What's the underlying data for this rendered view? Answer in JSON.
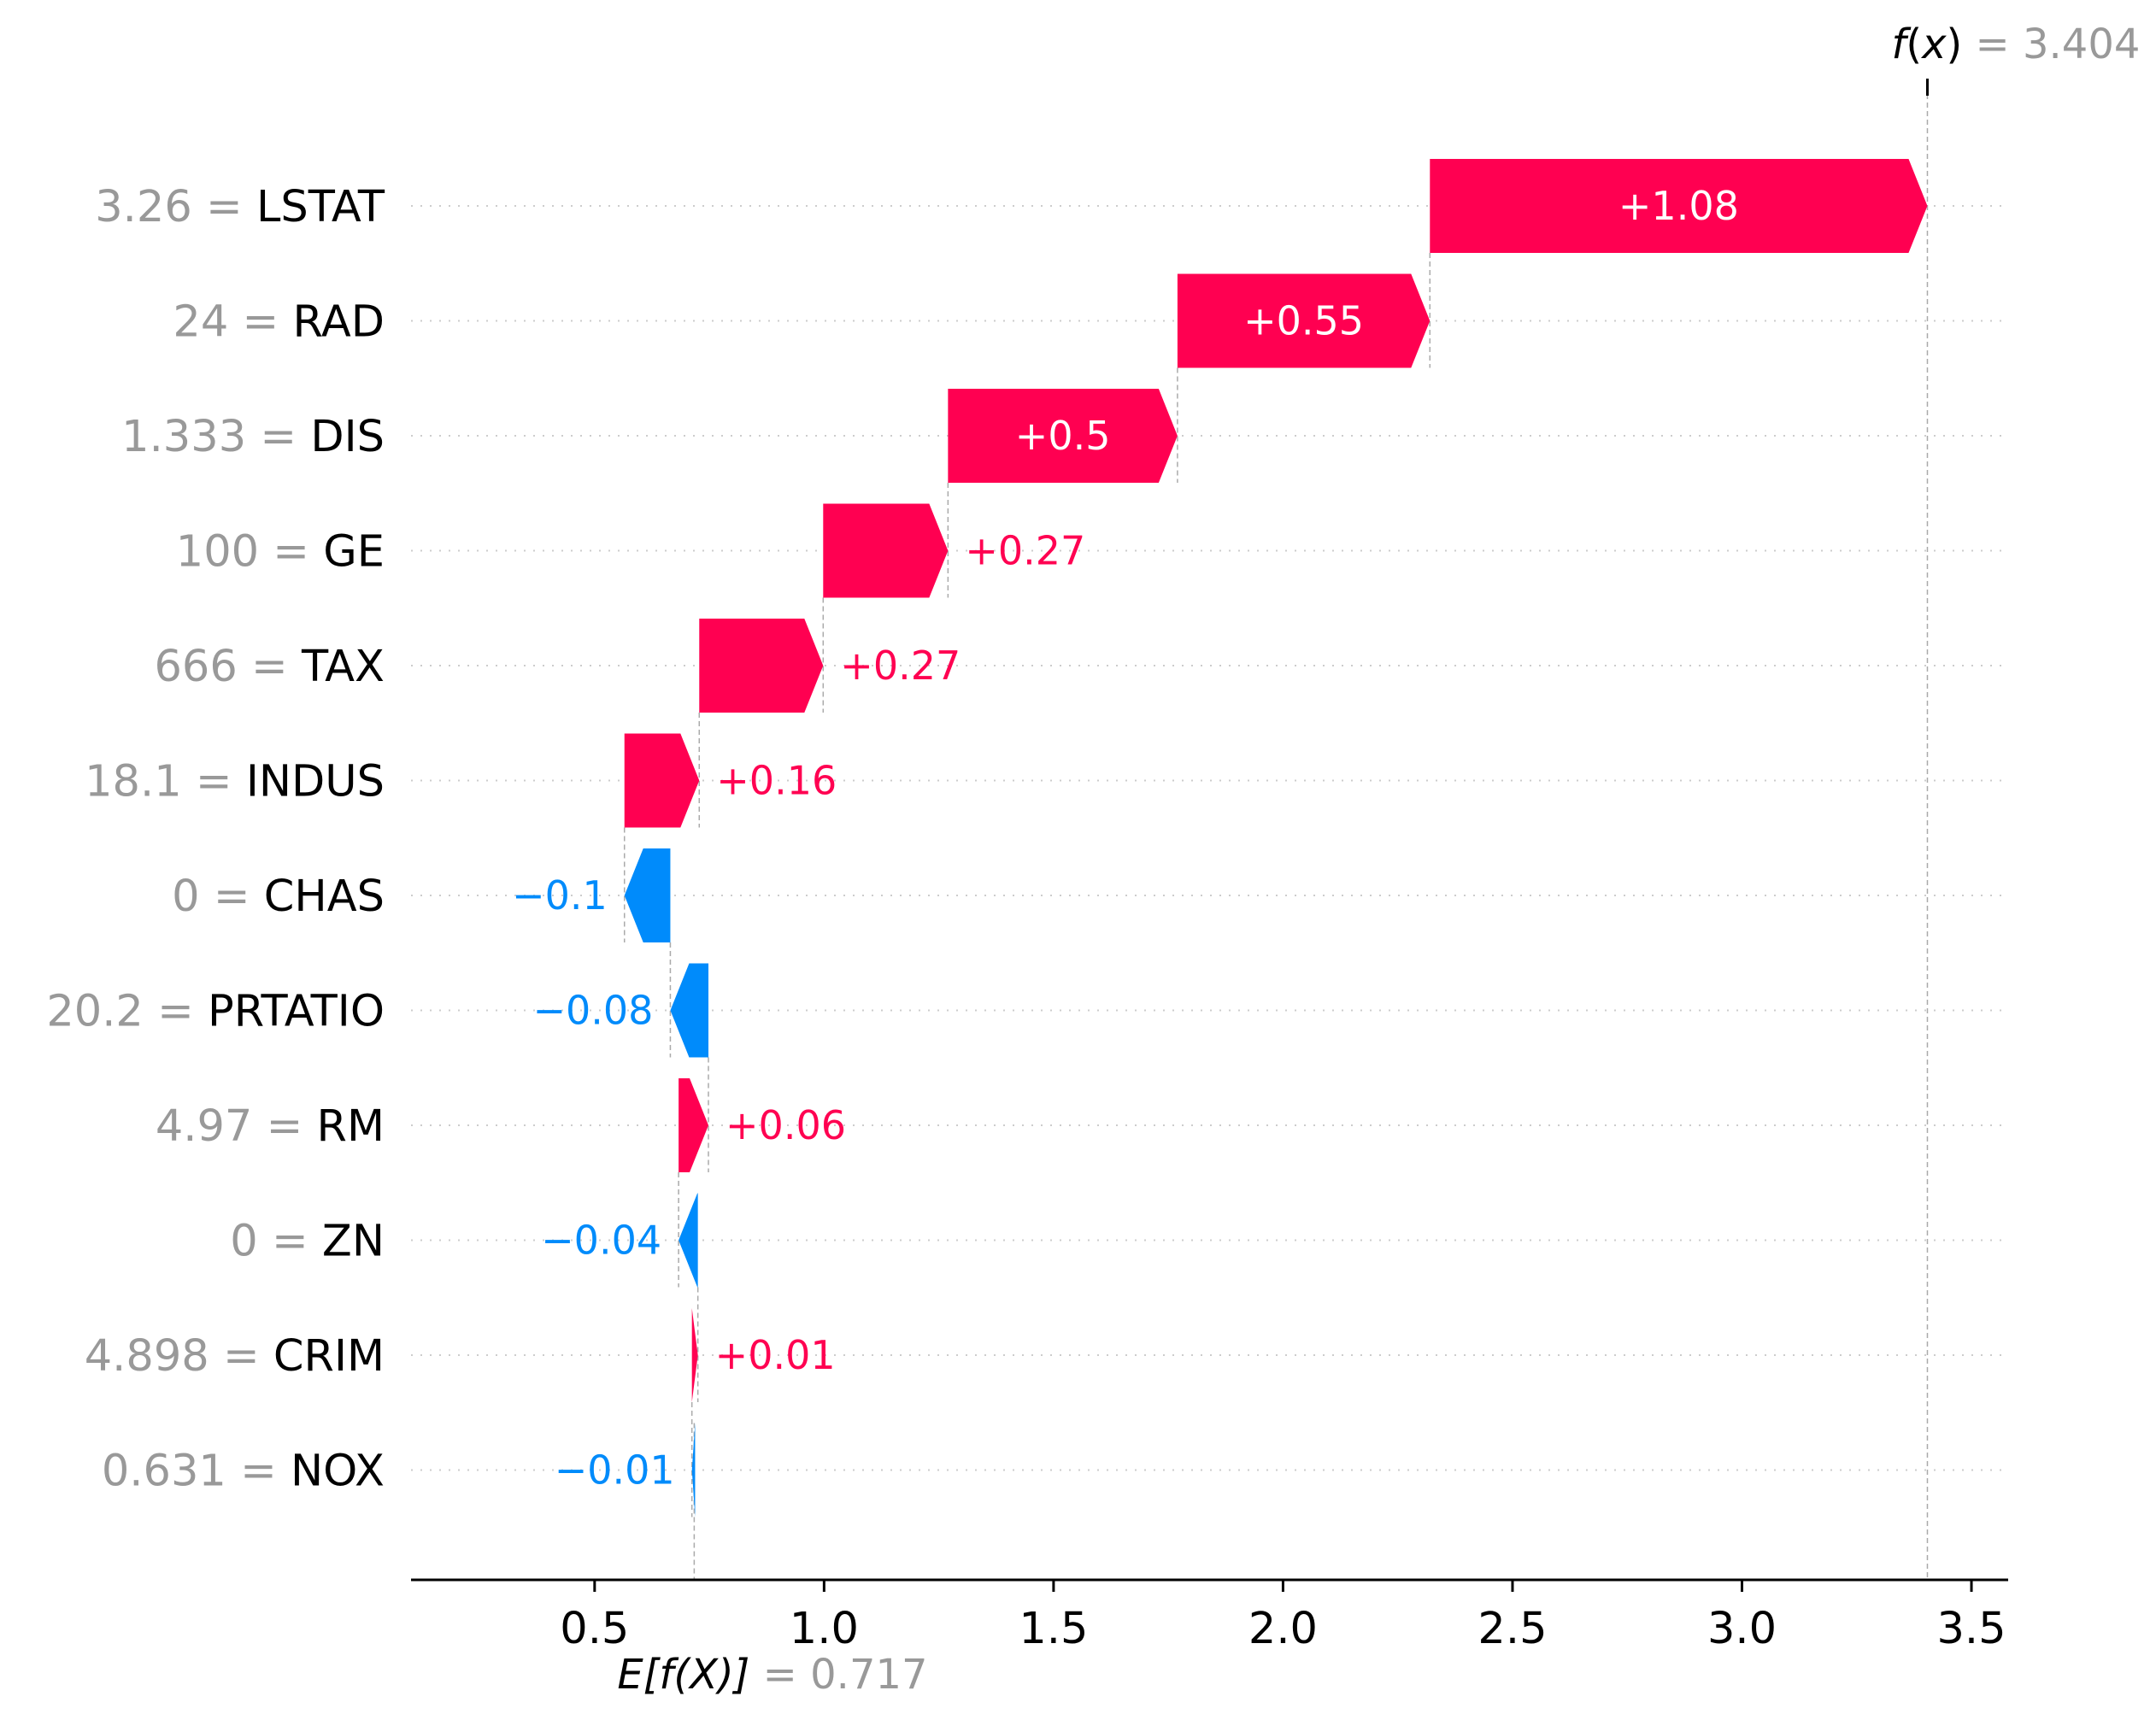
{
  "colors": {
    "positive": "#ff0051",
    "negative": "#008bfb",
    "muted": "#999999",
    "text": "#000000"
  },
  "chart_data": {
    "type": "waterfall",
    "xlim": [
      0.1,
      3.58
    ],
    "xticks": [
      0.5,
      1.0,
      1.5,
      2.0,
      2.5,
      3.0,
      3.5
    ],
    "xtick_labels": [
      "0.5",
      "1.0",
      "1.5",
      "2.0",
      "2.5",
      "3.0",
      "3.5"
    ],
    "base_value": 0.717,
    "base_label": {
      "prefix": "E[",
      "func": "f",
      "open": "(",
      "var": "X",
      "close": ")]",
      "value_text": " = 0.717"
    },
    "output_value": 3.404,
    "output_label": {
      "func": "f",
      "open": "(",
      "var": "x",
      "close": ")",
      "value_text": " = 3.404"
    },
    "features": [
      {
        "value": "3.26",
        "name": "LSTAT",
        "start": 2.32,
        "end": 3.404,
        "label": "+1.08"
      },
      {
        "value": "24",
        "name": "RAD",
        "start": 1.77,
        "end": 2.32,
        "label": "+0.55"
      },
      {
        "value": "1.333",
        "name": "DIS",
        "start": 1.27,
        "end": 1.77,
        "label": "+0.5"
      },
      {
        "value": "100",
        "name": "GE",
        "start": 0.998,
        "end": 1.27,
        "label": "+0.27"
      },
      {
        "value": "666",
        "name": "TAX",
        "start": 0.728,
        "end": 0.998,
        "label": "+0.27"
      },
      {
        "value": "18.1",
        "name": "INDUS",
        "start": 0.565,
        "end": 0.728,
        "label": "+0.16"
      },
      {
        "value": "0",
        "name": "CHAS",
        "start": 0.665,
        "end": 0.565,
        "label": "−0.1"
      },
      {
        "value": "20.2",
        "name": "PRTATIO",
        "start": 0.748,
        "end": 0.665,
        "label": "−0.08"
      },
      {
        "value": "4.97",
        "name": "RM",
        "start": 0.683,
        "end": 0.748,
        "label": "+0.06"
      },
      {
        "value": "0",
        "name": "ZN",
        "start": 0.725,
        "end": 0.683,
        "label": "−0.04"
      },
      {
        "value": "4.898",
        "name": "CRIM",
        "start": 0.712,
        "end": 0.725,
        "label": "+0.01"
      },
      {
        "value": "0.631",
        "name": "NOX",
        "start": 0.719,
        "end": 0.712,
        "label": "−0.01"
      }
    ]
  }
}
